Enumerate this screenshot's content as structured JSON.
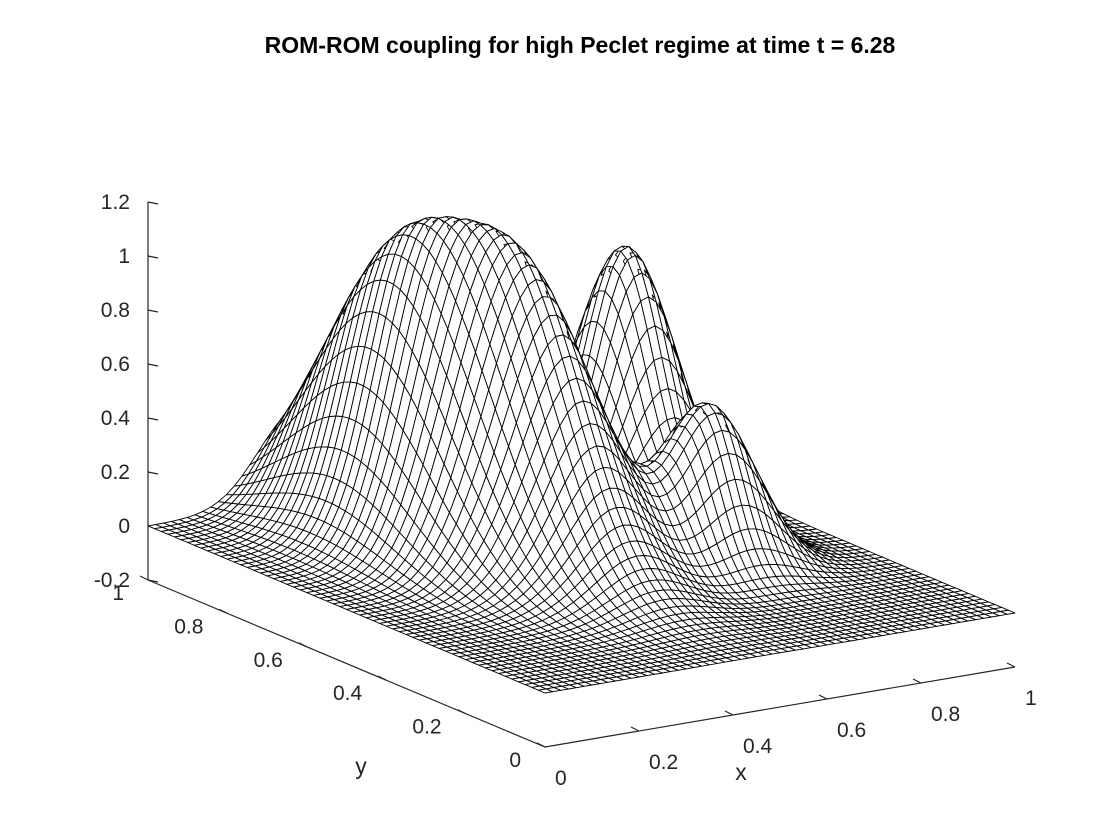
{
  "chart_data": {
    "type": "surface",
    "title": "ROM-ROM coupling for high Peclet regime at time t = 6.28",
    "xlabel": "x",
    "ylabel": "y",
    "zlabel": "",
    "xlim": [
      0,
      1
    ],
    "ylim": [
      0,
      1
    ],
    "zlim": [
      -0.2,
      1.2
    ],
    "x_ticks": [
      "0",
      "0.2",
      "0.4",
      "0.6",
      "0.8",
      "1"
    ],
    "y_ticks": [
      "0",
      "0.2",
      "0.4",
      "0.6",
      "0.8",
      "1"
    ],
    "z_ticks": [
      "-0.2",
      "0",
      "0.2",
      "0.4",
      "0.6",
      "0.8",
      "1",
      "1.2"
    ],
    "grid_size": [
      61,
      61
    ],
    "grid": false,
    "legend": "none",
    "surface_style": "mesh, white faces, black edges",
    "peaks": [
      {
        "x": 0.32,
        "y": 0.75,
        "height": 1.0,
        "spread_x": 0.085,
        "spread_y": 0.17
      },
      {
        "x": 0.44,
        "y": 0.55,
        "height": 0.94,
        "spread_x": 0.085,
        "spread_y": 0.15
      },
      {
        "x": 0.78,
        "y": 0.72,
        "height": 0.98,
        "spread_x": 0.08,
        "spread_y": 0.09
      },
      {
        "x": 0.7,
        "y": 0.42,
        "height": 0.6,
        "spread_x": 0.085,
        "spread_y": 0.07
      }
    ],
    "colors": {
      "edge": "#000000",
      "face": "#ffffff",
      "axis": "#262626"
    }
  }
}
